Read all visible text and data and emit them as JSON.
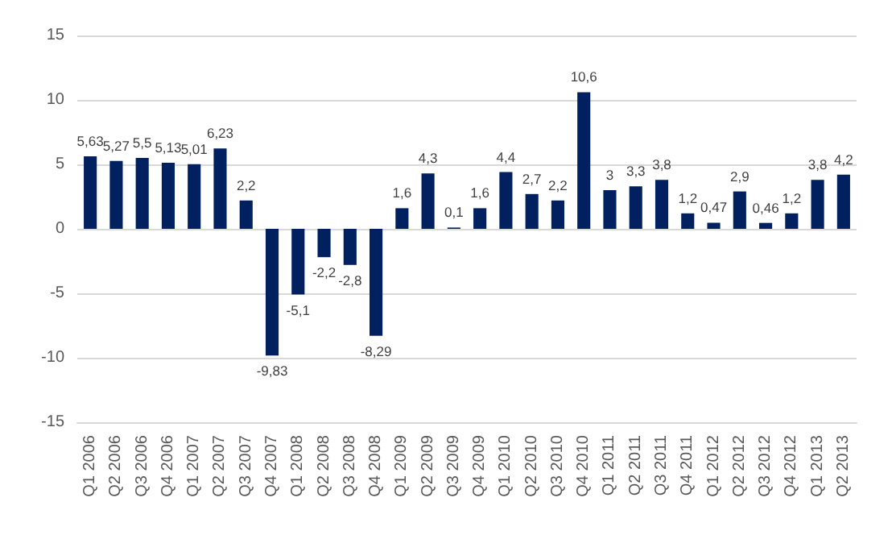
{
  "chart_data": {
    "type": "bar",
    "categories": [
      "Q1 2006",
      "Q2 2006",
      "Q3 2006",
      "Q4 2006",
      "Q1 2007",
      "Q2 2007",
      "Q3 2007",
      "Q4 2007",
      "Q1 2008",
      "Q2 2008",
      "Q3 2008",
      "Q4 2008",
      "Q1 2009",
      "Q2 2009",
      "Q3 2009",
      "Q4 2009",
      "Q1 2010",
      "Q2 2010",
      "Q3 2010",
      "Q4 2010",
      "Q1 2011",
      "Q2 2011",
      "Q3 2011",
      "Q4 2011",
      "Q1 2012",
      "Q2 2012",
      "Q3 2012",
      "Q4 2012",
      "Q1 2013",
      "Q2 2013"
    ],
    "values": [
      5.63,
      5.27,
      5.5,
      5.13,
      5.01,
      6.23,
      2.2,
      -9.83,
      -5.1,
      -2.2,
      -2.8,
      -8.29,
      1.6,
      4.3,
      0.1,
      1.6,
      4.4,
      2.7,
      2.2,
      10.6,
      3,
      3.3,
      3.8,
      1.2,
      0.47,
      2.9,
      0.46,
      1.2,
      3.8,
      4.2
    ],
    "value_labels": [
      "5,63",
      "5,27",
      "5,5",
      "5,13",
      "5,01",
      "6,23",
      "2,2",
      "-9,83",
      "-5,1",
      "-2,2",
      "-2,8",
      "-8,29",
      "1,6",
      "4,3",
      "0,1",
      "1,6",
      "4,4",
      "2,7",
      "2,2",
      "10,6",
      "3",
      "3,3",
      "3,8",
      "1,2",
      "0,47",
      "2,9",
      "0,46",
      "1,2",
      "3,8",
      "4,2"
    ],
    "color": "#002060",
    "ylim": [
      -15,
      15
    ],
    "yticks": [
      -15,
      -10,
      -5,
      0,
      5,
      10,
      15
    ],
    "grid": "y"
  }
}
